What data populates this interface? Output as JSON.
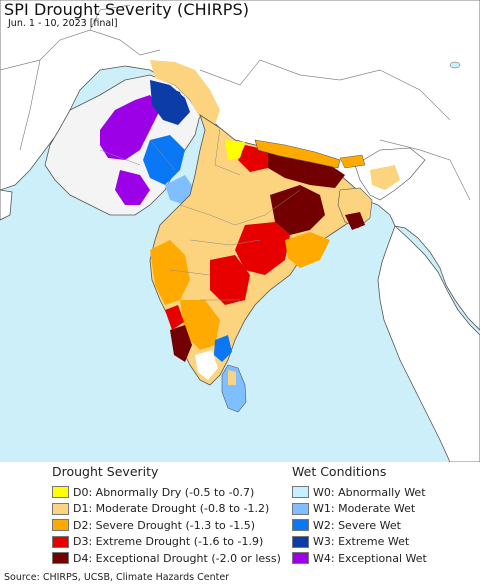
{
  "title": "SPI Drought Severity (CHIRPS)",
  "subtitle": "Jun. 1 - 10, 2023 [final]",
  "colors": {
    "ocean": "#cdeff9",
    "land_outside": "#ffffff",
    "border": "#555555"
  },
  "legend": {
    "drought": {
      "heading": "Drought Severity",
      "items": [
        {
          "label": "D0: Abnormally Dry (-0.5 to -0.7)",
          "color": "#ffff00"
        },
        {
          "label": "D1: Moderate Drought (-0.8 to -1.2)",
          "color": "#fcd37f"
        },
        {
          "label": "D2: Severe Drought (-1.3 to -1.5)",
          "color": "#ffaa00"
        },
        {
          "label": "D3: Extreme Drought (-1.6 to -1.9)",
          "color": "#e60000"
        },
        {
          "label": "D4: Exceptional Drought (-2.0 or less)",
          "color": "#730000"
        }
      ]
    },
    "wet": {
      "heading": "Wet Conditions",
      "items": [
        {
          "label": "W0: Abnormally Wet",
          "color": "#c5f0ff"
        },
        {
          "label": "W1: Moderate Wet",
          "color": "#7fbfff"
        },
        {
          "label": "W2: Severe Wet",
          "color": "#0a78f5"
        },
        {
          "label": "W3: Extreme Wet",
          "color": "#0c3ca8"
        },
        {
          "label": "W4: Exceptional Wet",
          "color": "#9b00e6"
        }
      ]
    }
  },
  "source": "Source: CHIRPS, UCSB, Climate Hazards Center"
}
